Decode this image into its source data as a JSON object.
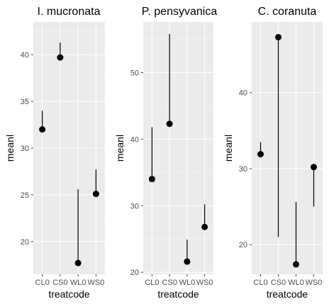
{
  "chart_data": [
    {
      "type": "scatter",
      "title": "I. mucronata",
      "xlabel": "treatcode",
      "ylabel": "meanl",
      "categories": [
        "CL0",
        "CS0",
        "WL0",
        "WS0"
      ],
      "values": [
        32.0,
        39.7,
        17.7,
        25.1
      ],
      "upper": [
        34.0,
        41.3,
        25.6,
        27.7
      ],
      "lower": [
        32.0,
        39.7,
        17.7,
        25.1
      ],
      "yticks": [
        20,
        25,
        30,
        35,
        40
      ],
      "ylim": [
        16.5,
        43.5
      ],
      "grid": true
    },
    {
      "type": "scatter",
      "title": "P. pensyvanica",
      "xlabel": "treatcode",
      "ylabel": "meanl",
      "categories": [
        "CL0",
        "CS0",
        "WL0",
        "WS0"
      ],
      "values": [
        34.0,
        42.3,
        21.6,
        26.8
      ],
      "upper": [
        41.8,
        55.8,
        24.9,
        30.2
      ],
      "lower": [
        34.0,
        42.3,
        21.6,
        26.8
      ],
      "yticks": [
        20,
        30,
        40,
        50
      ],
      "ylim": [
        19.7,
        57.6
      ],
      "grid": true
    },
    {
      "type": "scatter",
      "title": "C. coranuta",
      "xlabel": "treatcode",
      "ylabel": "meanl",
      "categories": [
        "CL0",
        "CS0",
        "WL0",
        "WS0"
      ],
      "values": [
        31.9,
        47.3,
        17.4,
        30.2
      ],
      "upper": [
        33.5,
        47.3,
        25.6,
        30.2
      ],
      "lower": [
        31.9,
        21.0,
        17.4,
        25.0
      ],
      "yticks": [
        20,
        30,
        40
      ],
      "ylim": [
        16.1,
        49.3
      ],
      "grid": true
    }
  ]
}
